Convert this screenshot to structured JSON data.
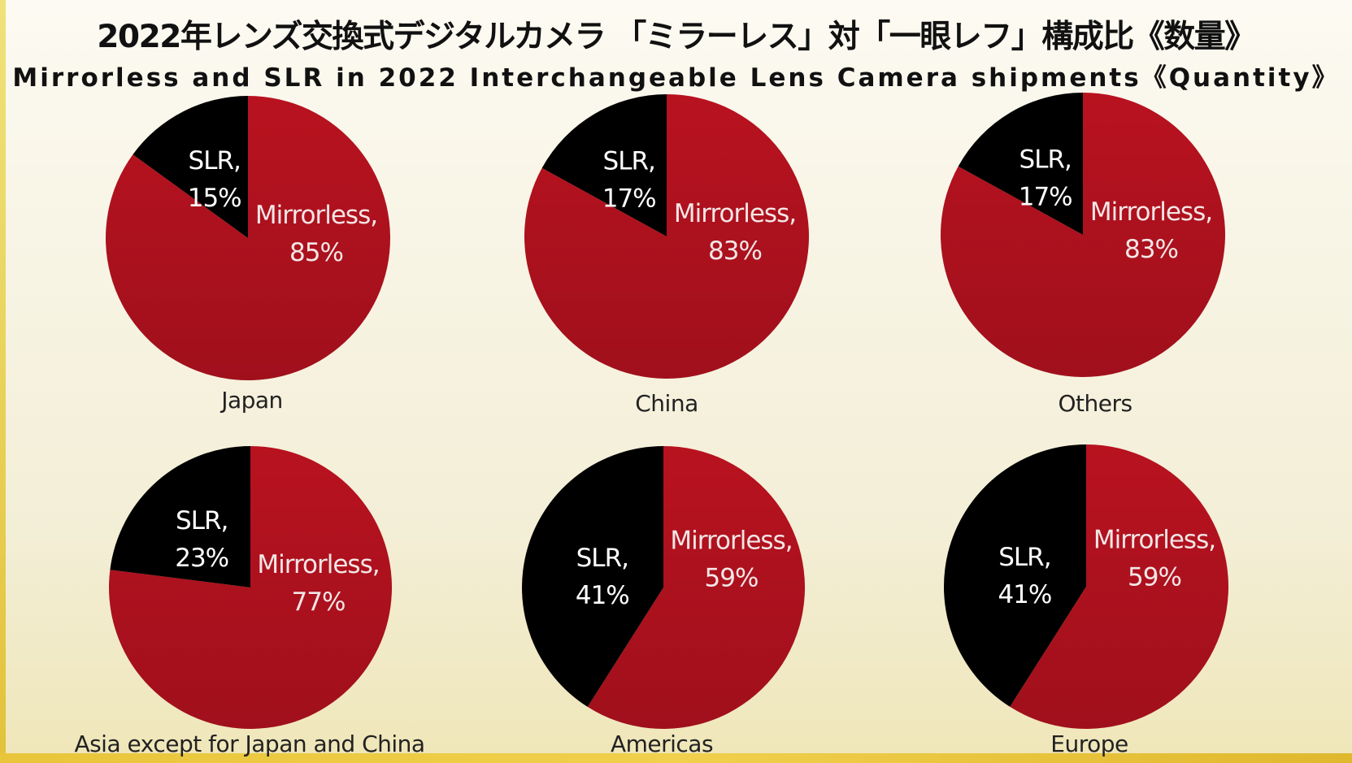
{
  "title_ja": "2022年レンズ交換式デジタルカメラ 「ミラーレス」対「一眼レフ」構成比《数量》",
  "title_en": "Mirrorless and SLR in 2022 Interchangeable Lens Camera shipments《Quantity》",
  "colors": {
    "mirrorless": "#b8121f",
    "slr": "#000000"
  },
  "chart_data": [
    {
      "type": "pie",
      "region": "Japan",
      "slices": [
        {
          "label": "SLR,",
          "value": 15,
          "value_text": "15%",
          "color": "#000000"
        },
        {
          "label": "Mirrorless,",
          "value": 85,
          "value_text": "85%",
          "color": "#b8121f"
        }
      ]
    },
    {
      "type": "pie",
      "region": "China",
      "slices": [
        {
          "label": "SLR,",
          "value": 17,
          "value_text": "17%",
          "color": "#000000"
        },
        {
          "label": "Mirrorless,",
          "value": 83,
          "value_text": "83%",
          "color": "#b8121f"
        }
      ]
    },
    {
      "type": "pie",
      "region": "Others",
      "slices": [
        {
          "label": "SLR,",
          "value": 17,
          "value_text": "17%",
          "color": "#000000"
        },
        {
          "label": "Mirrorless,",
          "value": 83,
          "value_text": "83%",
          "color": "#b8121f"
        }
      ]
    },
    {
      "type": "pie",
      "region": "Asia except for Japan and China",
      "slices": [
        {
          "label": "SLR,",
          "value": 23,
          "value_text": "23%",
          "color": "#000000"
        },
        {
          "label": "Mirrorless,",
          "value": 77,
          "value_text": "77%",
          "color": "#b8121f"
        }
      ]
    },
    {
      "type": "pie",
      "region": "Americas",
      "slices": [
        {
          "label": "SLR,",
          "value": 41,
          "value_text": "41%",
          "color": "#000000"
        },
        {
          "label": "Mirrorless,",
          "value": 59,
          "value_text": "59%",
          "color": "#b8121f"
        }
      ]
    },
    {
      "type": "pie",
      "region": "Europe",
      "slices": [
        {
          "label": "SLR,",
          "value": 41,
          "value_text": "41%",
          "color": "#000000"
        },
        {
          "label": "Mirrorless,",
          "value": 59,
          "value_text": "59%",
          "color": "#b8121f"
        }
      ]
    }
  ]
}
